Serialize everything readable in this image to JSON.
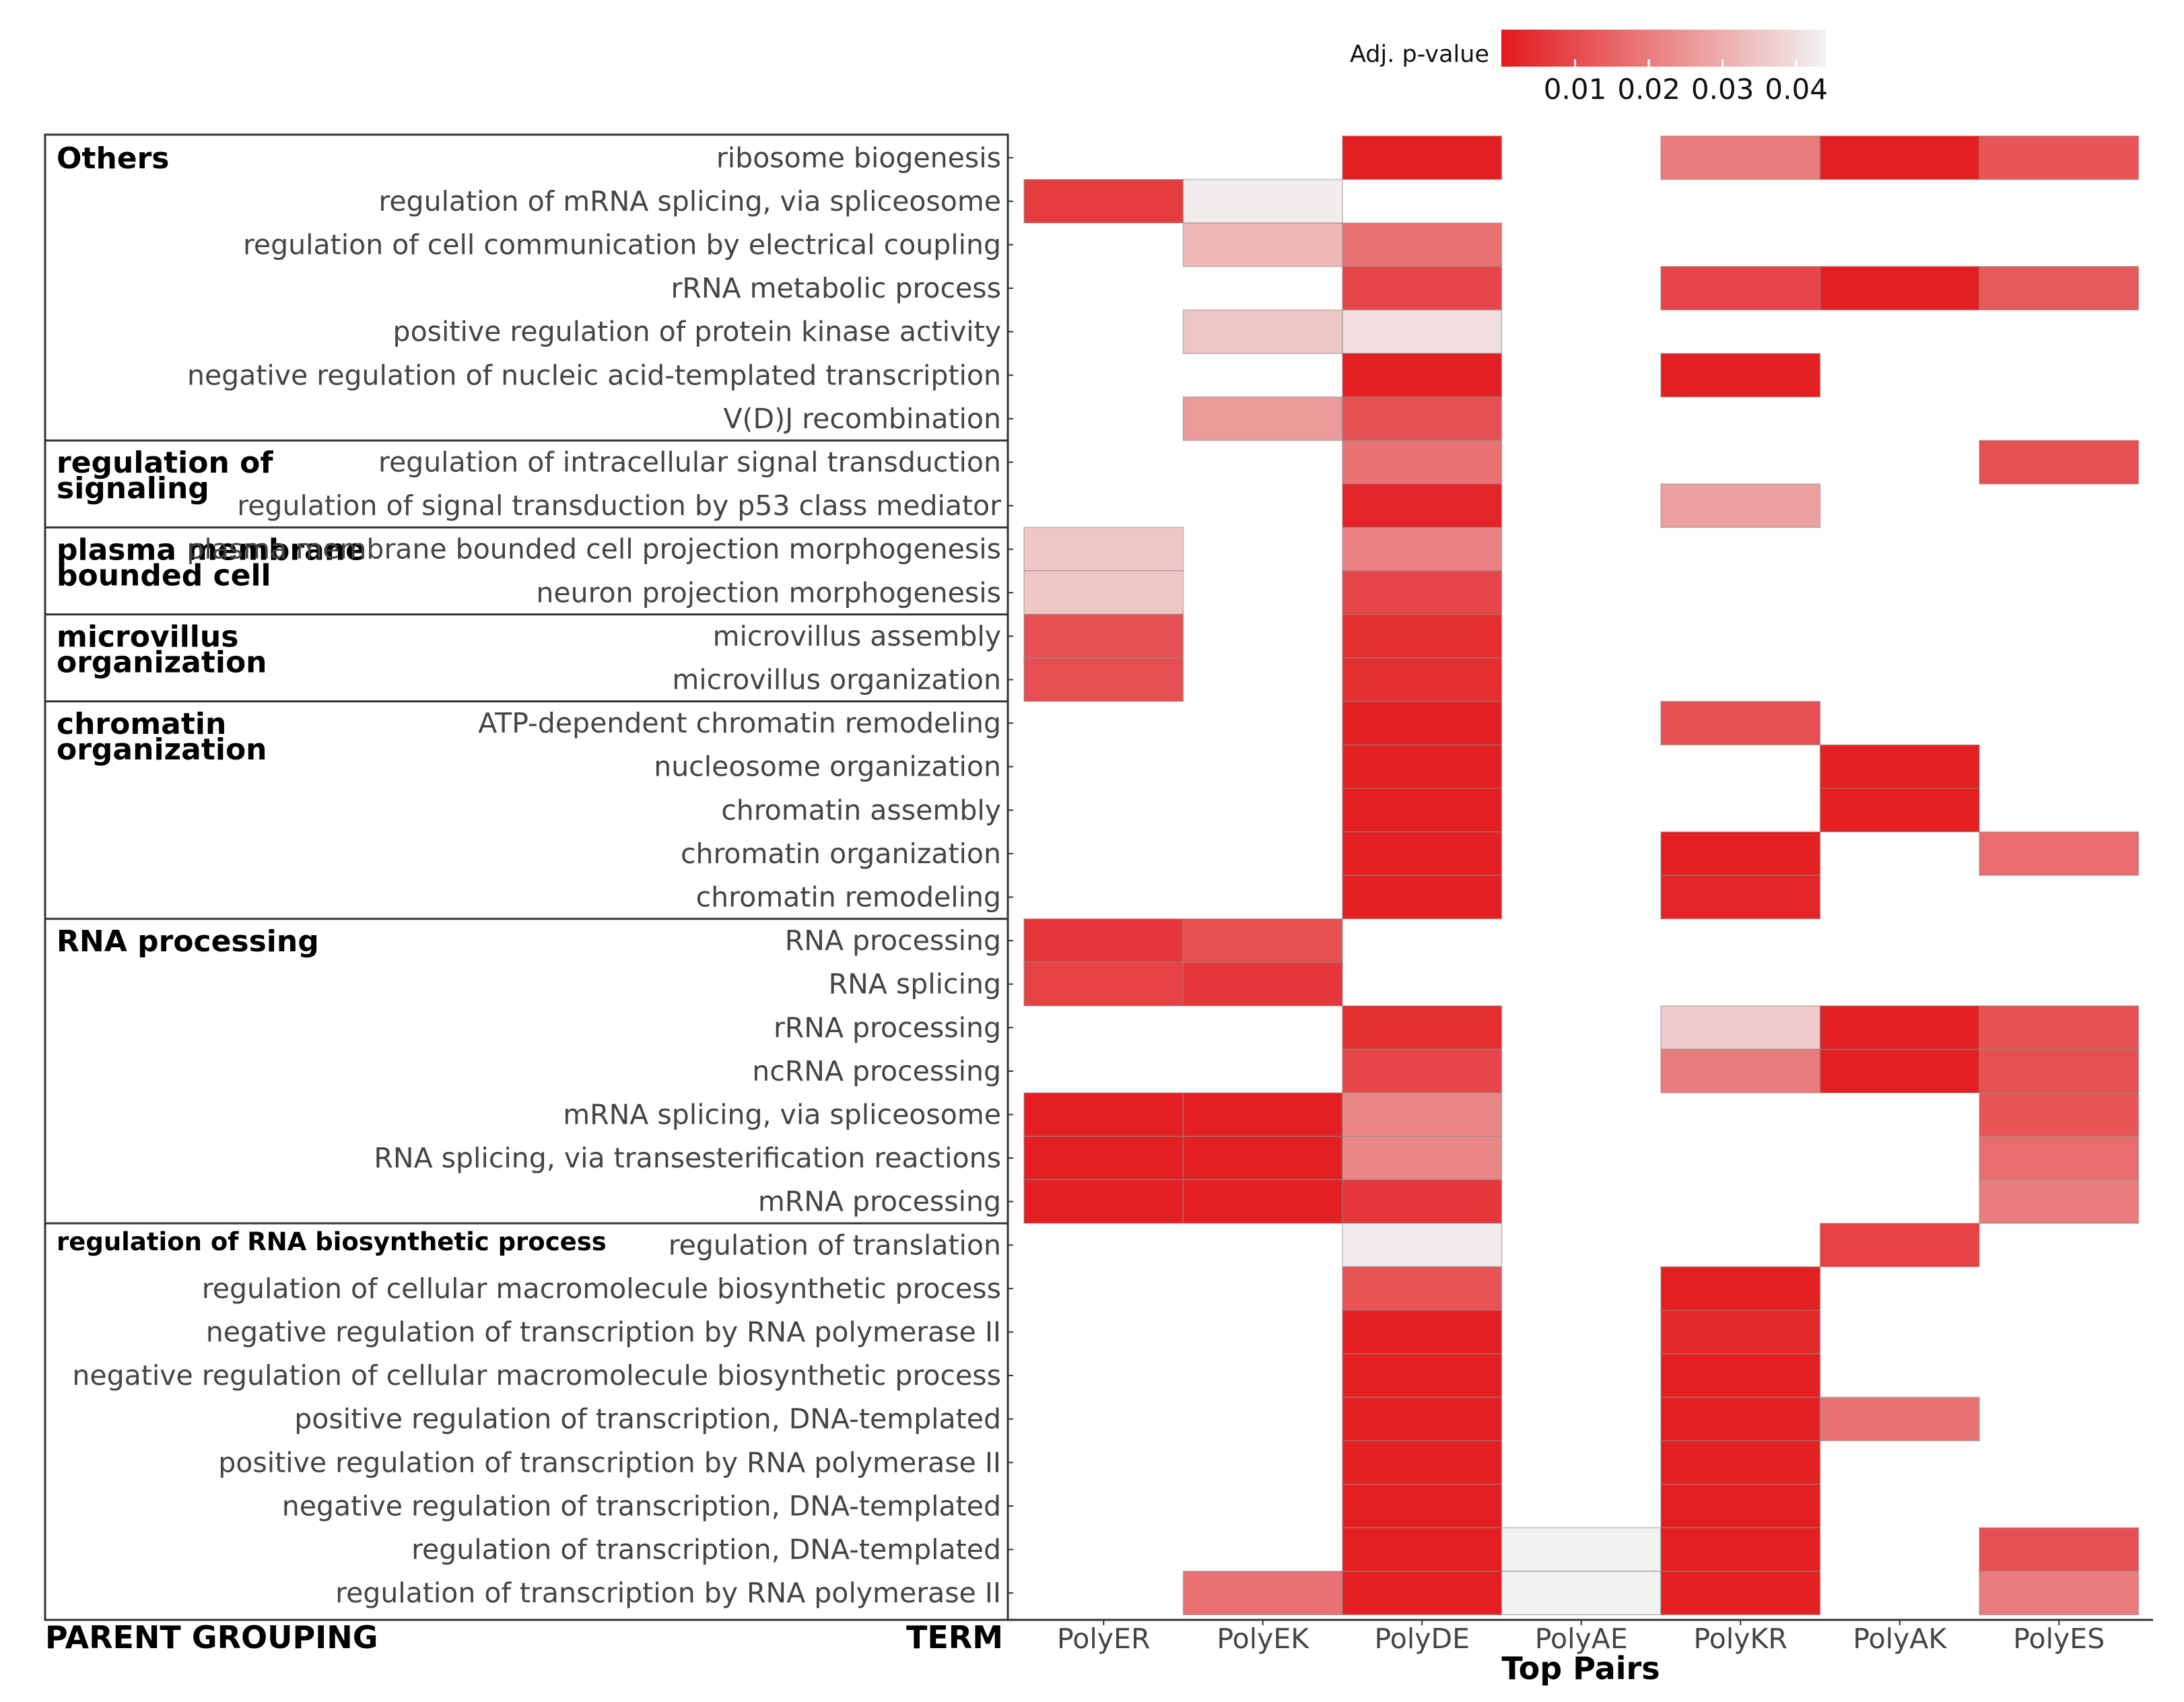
{
  "chart_data": {
    "type": "heatmap",
    "xlabel": "Top Pairs",
    "column_headers": {
      "parent": "PARENT GROUPING",
      "term": "TERM"
    },
    "columns": [
      "PolyER",
      "PolyEK",
      "PolyDE",
      "PolyAE",
      "PolyKR",
      "PolyAK",
      "PolyES"
    ],
    "legend": {
      "title": "Adj. p-value",
      "range": [
        0,
        0.044
      ],
      "ticks": [
        "0.01",
        "0.02",
        "0.03",
        "0.04"
      ],
      "low_color": "#e31a1c",
      "high_color": "#f2f2f2"
    },
    "groups": [
      {
        "label": [
          "Others"
        ],
        "rows": [
          0,
          6
        ]
      },
      {
        "label": [
          "regulation of",
          "signaling"
        ],
        "rows": [
          7,
          8
        ]
      },
      {
        "label": [
          "plasma membrane",
          "bounded cell"
        ],
        "rows": [
          9,
          10
        ]
      },
      {
        "label": [
          "microvillus",
          "organization"
        ],
        "rows": [
          11,
          12
        ]
      },
      {
        "label": [
          "chromatin",
          "organization"
        ],
        "rows": [
          13,
          17
        ]
      },
      {
        "label": [
          "RNA processing"
        ],
        "rows": [
          18,
          24
        ]
      },
      {
        "label": [
          "regulation of RNA biosynthetic process"
        ],
        "rows": [
          25,
          33
        ]
      }
    ],
    "rows": [
      {
        "term": "ribosome biogenesis",
        "values": [
          null,
          null,
          0.001,
          null,
          0.02,
          0.001,
          0.012
        ]
      },
      {
        "term": "regulation of mRNA splicing, via spliceosome",
        "values": [
          0.007,
          0.043,
          null,
          null,
          null,
          null,
          null
        ]
      },
      {
        "term": "regulation of cell communication by electrical coupling",
        "values": [
          null,
          0.032,
          0.018,
          null,
          null,
          null,
          null
        ]
      },
      {
        "term": "rRNA metabolic process",
        "values": [
          null,
          null,
          0.009,
          null,
          0.009,
          0.001,
          0.013
        ]
      },
      {
        "term": "positive regulation of protein kinase activity",
        "values": [
          null,
          0.035,
          0.04,
          null,
          null,
          null,
          null
        ]
      },
      {
        "term": "negative regulation of nucleic acid-templated transcription",
        "values": [
          null,
          null,
          0.001,
          null,
          0.001,
          null,
          null
        ]
      },
      {
        "term": "V(D)J recombination",
        "values": [
          null,
          0.026,
          0.011,
          null,
          null,
          null,
          null
        ]
      },
      {
        "term": "regulation of intracellular signal transduction",
        "values": [
          null,
          null,
          0.018,
          null,
          null,
          null,
          0.011
        ]
      },
      {
        "term": "regulation of signal transduction by p53 class mediator",
        "values": [
          null,
          null,
          0.002,
          null,
          0.027,
          null,
          null
        ]
      },
      {
        "term": "plasma membrane bounded cell projection morphogenesis",
        "values": [
          0.035,
          null,
          0.021,
          null,
          null,
          null,
          null
        ]
      },
      {
        "term": "neuron projection morphogenesis",
        "values": [
          0.035,
          null,
          0.009,
          null,
          null,
          null,
          null
        ]
      },
      {
        "term": "microvillus assembly",
        "values": [
          0.011,
          null,
          0.004,
          null,
          null,
          null,
          null
        ]
      },
      {
        "term": "microvillus organization",
        "values": [
          0.011,
          null,
          0.004,
          null,
          null,
          null,
          null
        ]
      },
      {
        "term": "ATP-dependent chromatin remodeling",
        "values": [
          null,
          null,
          0.001,
          null,
          0.011,
          null,
          null
        ]
      },
      {
        "term": "nucleosome organization",
        "values": [
          null,
          null,
          0.001,
          null,
          null,
          0.001,
          null
        ]
      },
      {
        "term": "chromatin assembly",
        "values": [
          null,
          null,
          0.001,
          null,
          null,
          0.001,
          null
        ]
      },
      {
        "term": "chromatin organization",
        "values": [
          null,
          null,
          0.001,
          null,
          0.001,
          null,
          0.017
        ]
      },
      {
        "term": "chromatin remodeling",
        "values": [
          null,
          null,
          0.001,
          null,
          0.002,
          null,
          null
        ]
      },
      {
        "term": "RNA processing",
        "values": [
          0.006,
          0.011,
          null,
          null,
          null,
          null,
          null
        ]
      },
      {
        "term": "RNA splicing",
        "values": [
          0.008,
          0.006,
          null,
          null,
          null,
          null,
          null
        ]
      },
      {
        "term": "rRNA processing",
        "values": [
          null,
          null,
          0.004,
          null,
          0.036,
          0.001,
          0.011
        ]
      },
      {
        "term": "ncRNA processing",
        "values": [
          null,
          null,
          0.009,
          null,
          0.02,
          0.001,
          0.011
        ]
      },
      {
        "term": "mRNA splicing, via spliceosome",
        "values": [
          0.001,
          0.001,
          0.022,
          null,
          null,
          null,
          0.012
        ]
      },
      {
        "term": "RNA splicing, via transesterification reactions",
        "values": [
          0.001,
          0.001,
          0.022,
          null,
          null,
          null,
          0.017
        ]
      },
      {
        "term": "mRNA processing",
        "values": [
          0.001,
          0.001,
          0.006,
          null,
          null,
          null,
          0.02
        ]
      },
      {
        "term": "regulation of translation",
        "values": [
          null,
          null,
          0.043,
          null,
          null,
          0.008,
          null
        ]
      },
      {
        "term": "regulation of cellular macromolecule biosynthetic process",
        "values": [
          null,
          null,
          0.012,
          null,
          0.001,
          null,
          null
        ]
      },
      {
        "term": "negative regulation of transcription by RNA polymerase II",
        "values": [
          null,
          null,
          0.001,
          null,
          0.003,
          null,
          null
        ]
      },
      {
        "term": "negative regulation of cellular macromolecule biosynthetic process",
        "values": [
          null,
          null,
          0.001,
          null,
          0.001,
          null,
          null
        ]
      },
      {
        "term": "positive regulation of transcription, DNA-templated",
        "values": [
          null,
          null,
          0.001,
          null,
          0.001,
          0.018,
          null
        ]
      },
      {
        "term": "positive regulation of transcription by RNA polymerase II",
        "values": [
          null,
          null,
          0.001,
          null,
          0.001,
          null,
          null
        ]
      },
      {
        "term": "negative regulation of transcription, DNA-templated",
        "values": [
          null,
          null,
          0.001,
          null,
          0.001,
          null,
          null
        ]
      },
      {
        "term": "regulation of transcription, DNA-templated",
        "values": [
          null,
          null,
          0.001,
          0.044,
          0.001,
          null,
          0.011
        ]
      },
      {
        "term": "regulation of transcription by RNA polymerase II",
        "values": [
          null,
          0.018,
          0.001,
          0.044,
          0.001,
          null,
          0.02
        ]
      }
    ]
  }
}
